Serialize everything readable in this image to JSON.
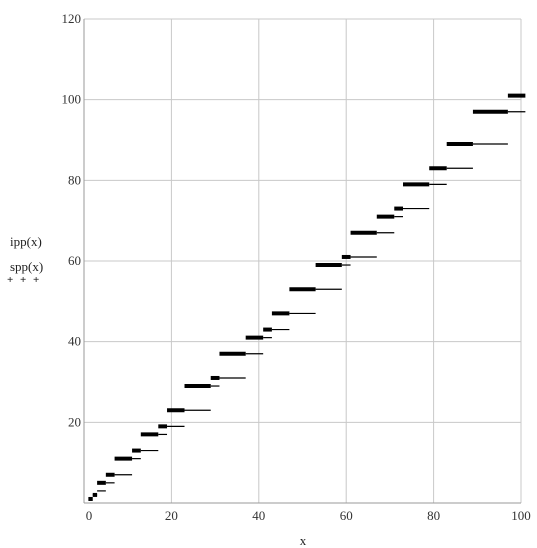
{
  "chart_data": {
    "type": "line",
    "title": "",
    "xlabel": "x",
    "ylabel_lines": [
      "ipp(x)",
      "spp(x)"
    ],
    "xlim": [
      0,
      100
    ],
    "ylim": [
      0,
      120
    ],
    "x_ticks": [
      0,
      20,
      40,
      60,
      80,
      100
    ],
    "y_ticks": [
      20,
      40,
      60,
      80,
      100,
      120
    ],
    "grid": true,
    "legend_markers": "+ + +",
    "series": [
      {
        "style": "thick",
        "color": "#000000",
        "segments": [
          {
            "x": [
              1,
              2
            ],
            "y": 1
          },
          {
            "x": [
              2,
              3
            ],
            "y": 2
          },
          {
            "x": [
              3,
              5
            ],
            "y": 5
          },
          {
            "x": [
              5,
              7
            ],
            "y": 7
          },
          {
            "x": [
              7,
              11
            ],
            "y": 11
          },
          {
            "x": [
              11,
              13
            ],
            "y": 13
          },
          {
            "x": [
              13,
              17
            ],
            "y": 17
          },
          {
            "x": [
              17,
              19
            ],
            "y": 19
          },
          {
            "x": [
              19,
              23
            ],
            "y": 23
          },
          {
            "x": [
              23,
              29
            ],
            "y": 29
          },
          {
            "x": [
              29,
              31
            ],
            "y": 31
          },
          {
            "x": [
              31,
              37
            ],
            "y": 37
          },
          {
            "x": [
              37,
              41
            ],
            "y": 41
          },
          {
            "x": [
              41,
              43
            ],
            "y": 43
          },
          {
            "x": [
              43,
              47
            ],
            "y": 47
          },
          {
            "x": [
              47,
              53
            ],
            "y": 53
          },
          {
            "x": [
              53,
              59
            ],
            "y": 59
          },
          {
            "x": [
              59,
              61
            ],
            "y": 61
          },
          {
            "x": [
              61,
              67
            ],
            "y": 67
          },
          {
            "x": [
              67,
              71
            ],
            "y": 71
          },
          {
            "x": [
              71,
              73
            ],
            "y": 73
          },
          {
            "x": [
              73,
              79
            ],
            "y": 79
          },
          {
            "x": [
              79,
              83
            ],
            "y": 83
          },
          {
            "x": [
              83,
              89
            ],
            "y": 89
          },
          {
            "x": [
              89,
              97
            ],
            "y": 97
          },
          {
            "x": [
              97,
              101
            ],
            "y": 101
          }
        ]
      },
      {
        "style": "thin",
        "color": "#000000",
        "segments": [
          {
            "x": [
              2,
              3
            ],
            "y": 2
          },
          {
            "x": [
              3,
              5
            ],
            "y": 3
          },
          {
            "x": [
              5,
              7
            ],
            "y": 5
          },
          {
            "x": [
              7,
              11
            ],
            "y": 7
          },
          {
            "x": [
              11,
              13
            ],
            "y": 11
          },
          {
            "x": [
              13,
              17
            ],
            "y": 13
          },
          {
            "x": [
              17,
              19
            ],
            "y": 17
          },
          {
            "x": [
              19,
              23
            ],
            "y": 19
          },
          {
            "x": [
              23,
              29
            ],
            "y": 23
          },
          {
            "x": [
              29,
              31
            ],
            "y": 29
          },
          {
            "x": [
              31,
              37
            ],
            "y": 31
          },
          {
            "x": [
              37,
              41
            ],
            "y": 37
          },
          {
            "x": [
              41,
              43
            ],
            "y": 41
          },
          {
            "x": [
              43,
              47
            ],
            "y": 43
          },
          {
            "x": [
              47,
              53
            ],
            "y": 47
          },
          {
            "x": [
              53,
              59
            ],
            "y": 53
          },
          {
            "x": [
              59,
              61
            ],
            "y": 59
          },
          {
            "x": [
              61,
              67
            ],
            "y": 61
          },
          {
            "x": [
              67,
              71
            ],
            "y": 67
          },
          {
            "x": [
              71,
              73
            ],
            "y": 71
          },
          {
            "x": [
              73,
              79
            ],
            "y": 73
          },
          {
            "x": [
              79,
              83
            ],
            "y": 79
          },
          {
            "x": [
              83,
              89
            ],
            "y": 83
          },
          {
            "x": [
              89,
              97
            ],
            "y": 89
          },
          {
            "x": [
              97,
              101
            ],
            "y": 97
          }
        ]
      }
    ]
  }
}
